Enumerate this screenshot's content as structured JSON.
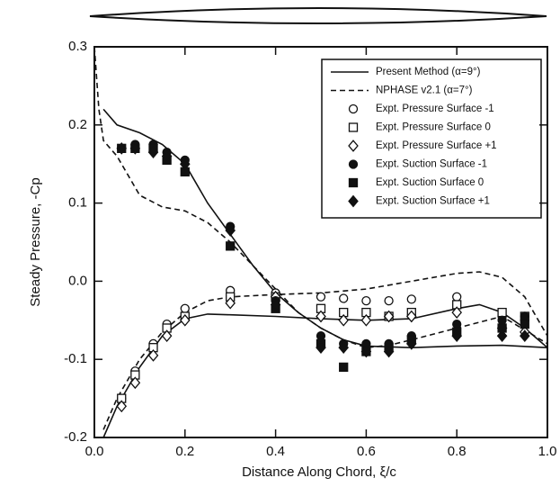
{
  "chart_data": {
    "type": "line",
    "x_label": "Distance Along Chord, ξ/c",
    "y_label": "Steady Pressure, -Cp",
    "xlim": [
      0,
      1
    ],
    "ylim": [
      -0.2,
      0.3
    ],
    "xticks": [
      {
        "value": 0,
        "label": "0.0"
      },
      0.2,
      0.4,
      0.6,
      0.8,
      {
        "value": 1,
        "label": "1.0"
      }
    ],
    "yticks": [
      -0.2,
      -0.1,
      {
        "value": 0,
        "label": "0.0"
      },
      0.1,
      0.2,
      0.3
    ],
    "series": [
      {
        "name": "Present Method (α=9°)",
        "style": "solid",
        "color": "#111",
        "curves": [
          {
            "x": [
              0.02,
              0.05,
              0.1,
              0.15,
              0.2,
              0.25,
              0.3,
              0.35,
              0.4,
              0.45,
              0.5,
              0.55,
              0.6,
              0.7,
              0.8,
              0.9,
              1.0
            ],
            "values": [
              0.22,
              0.2,
              0.19,
              0.175,
              0.15,
              0.1,
              0.06,
              0.02,
              -0.015,
              -0.04,
              -0.06,
              -0.075,
              -0.083,
              -0.085,
              -0.083,
              -0.082,
              -0.085
            ]
          },
          {
            "x": [
              0.02,
              0.05,
              0.1,
              0.15,
              0.2,
              0.25,
              0.3,
              0.4,
              0.5,
              0.6,
              0.7,
              0.8,
              0.85,
              0.9,
              0.95,
              1.0
            ],
            "values": [
              -0.2,
              -0.16,
              -0.11,
              -0.07,
              -0.048,
              -0.042,
              -0.043,
              -0.045,
              -0.048,
              -0.05,
              -0.048,
              -0.035,
              -0.03,
              -0.04,
              -0.06,
              -0.085
            ]
          }
        ]
      },
      {
        "name": "NPHASE v2.1 (α=7°)",
        "style": "dashed",
        "color": "#111",
        "curves": [
          {
            "x": [
              0.0,
              0.01,
              0.02,
              0.05,
              0.1,
              0.15,
              0.2,
              0.25,
              0.3,
              0.35,
              0.4,
              0.45,
              0.5,
              0.55,
              0.6,
              0.65,
              0.7,
              0.8,
              0.9,
              1.0
            ],
            "values": [
              0.3,
              0.22,
              0.18,
              0.16,
              0.11,
              0.095,
              0.09,
              0.075,
              0.05,
              0.02,
              -0.01,
              -0.04,
              -0.06,
              -0.075,
              -0.085,
              -0.082,
              -0.075,
              -0.06,
              -0.045,
              -0.08
            ]
          },
          {
            "x": [
              0.02,
              0.05,
              0.1,
              0.15,
              0.2,
              0.25,
              0.3,
              0.4,
              0.5,
              0.6,
              0.7,
              0.8,
              0.85,
              0.9,
              0.95,
              1.0
            ],
            "values": [
              -0.19,
              -0.15,
              -0.1,
              -0.065,
              -0.04,
              -0.025,
              -0.02,
              -0.017,
              -0.015,
              -0.01,
              0.0,
              0.01,
              0.012,
              0.005,
              -0.02,
              -0.07
            ]
          }
        ]
      },
      {
        "name": "Expt. Pressure Surface -1",
        "marker": "circle",
        "filled": false,
        "x": [
          0.06,
          0.09,
          0.13,
          0.16,
          0.2,
          0.3,
          0.4,
          0.5,
          0.55,
          0.6,
          0.65,
          0.7,
          0.8,
          0.9,
          0.95
        ],
        "values": [
          -0.15,
          -0.115,
          -0.08,
          -0.055,
          -0.035,
          -0.012,
          -0.015,
          -0.02,
          -0.022,
          -0.025,
          -0.025,
          -0.023,
          -0.02,
          -0.045,
          -0.05
        ]
      },
      {
        "name": "Expt. Pressure Surface  0",
        "marker": "square",
        "filled": false,
        "x": [
          0.06,
          0.09,
          0.13,
          0.16,
          0.2,
          0.3,
          0.4,
          0.5,
          0.55,
          0.6,
          0.65,
          0.7,
          0.8,
          0.9,
          0.95
        ],
        "values": [
          -0.15,
          -0.12,
          -0.085,
          -0.06,
          -0.045,
          -0.02,
          -0.02,
          -0.035,
          -0.04,
          -0.04,
          -0.045,
          -0.04,
          -0.03,
          -0.04,
          -0.045
        ]
      },
      {
        "name": "Expt. Pressure Surface +1",
        "marker": "diamond",
        "filled": false,
        "x": [
          0.06,
          0.09,
          0.13,
          0.16,
          0.2,
          0.3,
          0.4,
          0.5,
          0.55,
          0.6,
          0.65,
          0.7,
          0.8,
          0.9,
          0.95
        ],
        "values": [
          -0.16,
          -0.13,
          -0.095,
          -0.07,
          -0.05,
          -0.028,
          -0.02,
          -0.045,
          -0.05,
          -0.05,
          -0.045,
          -0.045,
          -0.04,
          -0.06,
          -0.065
        ]
      },
      {
        "name": "Expt. Suction Surface -1",
        "marker": "circle",
        "filled": true,
        "x": [
          0.06,
          0.09,
          0.13,
          0.16,
          0.2,
          0.3,
          0.4,
          0.5,
          0.55,
          0.6,
          0.65,
          0.7,
          0.8,
          0.9,
          0.95
        ],
        "values": [
          0.17,
          0.175,
          0.175,
          0.165,
          0.155,
          0.07,
          -0.025,
          -0.07,
          -0.08,
          -0.08,
          -0.08,
          -0.07,
          -0.055,
          -0.05,
          -0.045
        ]
      },
      {
        "name": "Expt. Suction Surface  0",
        "marker": "square",
        "filled": true,
        "x": [
          0.06,
          0.09,
          0.13,
          0.16,
          0.2,
          0.3,
          0.4,
          0.5,
          0.55,
          0.6,
          0.65,
          0.7,
          0.8,
          0.9,
          0.95
        ],
        "values": [
          0.17,
          0.17,
          0.17,
          0.155,
          0.14,
          0.045,
          -0.035,
          -0.08,
          -0.11,
          -0.09,
          -0.085,
          -0.075,
          -0.065,
          -0.06,
          -0.055
        ]
      },
      {
        "name": "Expt. Suction Surface +1",
        "marker": "diamond",
        "filled": true,
        "x": [
          0.06,
          0.09,
          0.13,
          0.16,
          0.2,
          0.3,
          0.4,
          0.5,
          0.55,
          0.6,
          0.65,
          0.7,
          0.8,
          0.9,
          0.95
        ],
        "values": [
          0.17,
          0.17,
          0.165,
          0.16,
          0.15,
          0.065,
          -0.03,
          -0.085,
          -0.085,
          -0.09,
          -0.09,
          -0.08,
          -0.07,
          -0.07,
          -0.07
        ]
      }
    ]
  }
}
